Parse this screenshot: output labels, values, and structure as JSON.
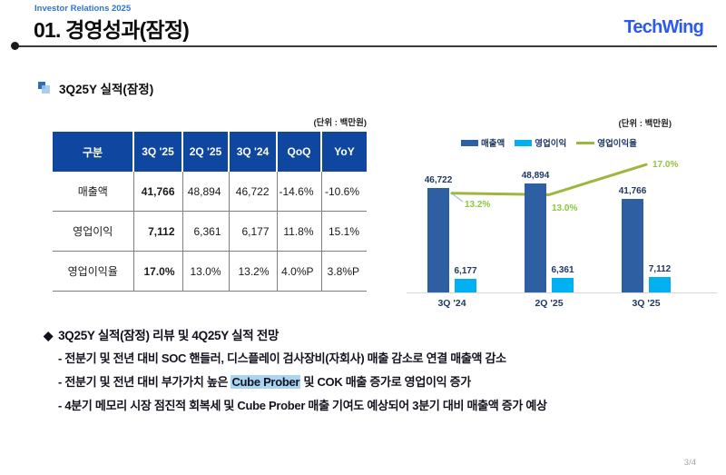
{
  "header": {
    "eyebrow": "Investor Relations 2025",
    "title": "01. 경영성과(잠정)",
    "logo": "TechWing"
  },
  "section": {
    "title": "3Q25Y 실적(잠정)"
  },
  "table": {
    "unit_label": "(단위 : 백만원)",
    "columns": [
      "구분",
      "3Q '25",
      "2Q '25",
      "3Q '24",
      "QoQ",
      "YoY"
    ],
    "rows": [
      {
        "label": "매출액",
        "values": [
          "41,766",
          "48,894",
          "46,722",
          "-14.6%",
          "-10.6%"
        ]
      },
      {
        "label": "영업이익",
        "values": [
          "7,112",
          "6,361",
          "6,177",
          "11.8%",
          "15.1%"
        ]
      },
      {
        "label": "영업이익율",
        "values": [
          "17.0%",
          "13.0%",
          "13.2%",
          "4.0%P",
          "3.8%P"
        ]
      }
    ]
  },
  "chart": {
    "unit_label": "(단위 : 백만원)"
  },
  "chart_data": {
    "type": "bar+line",
    "categories": [
      "3Q '24",
      "2Q '25",
      "3Q '25"
    ],
    "series": [
      {
        "name": "매출액",
        "type": "bar",
        "color": "#2E5FA3",
        "values": [
          46722,
          48894,
          41766
        ],
        "labels": [
          "46,722",
          "48,894",
          "41,766"
        ]
      },
      {
        "name": "영업이익",
        "type": "bar",
        "color": "#00B0F0",
        "values": [
          6177,
          6361,
          7112
        ],
        "labels": [
          "6,177",
          "6,361",
          "7,112"
        ]
      },
      {
        "name": "영업이익율",
        "type": "line",
        "color": "#9DB63C",
        "label_color": "#8DC63F",
        "values": [
          13.2,
          13.0,
          17.0
        ],
        "labels": [
          "13.2%",
          "13.0%",
          "17.0%"
        ]
      }
    ],
    "legend_position": "top",
    "bar_axis_max": 48894,
    "grid": false
  },
  "review": {
    "diamond": "◆",
    "heading": "3Q25Y 실적(잠정) 리뷰 및 4Q25Y 실적 전망",
    "bullet1": "- 전분기 및 전년 대비 SOC 핸들러, 디스플레이 검사장비(자회사) 매출 감소로 연결 매출액 감소",
    "bullet2_pre": "- 전분기 및 전년 대비 부가가치 높은 ",
    "bullet2_highlight": "Cube Prober",
    "bullet2_post": " 및 COK 매출 증가로 영업이익 증가",
    "bullet3": "- 4분기 메모리 시장 점진적 회복세 및 Cube Prober 매출 기여도 예상되어 3분기 대비 매출액 증가 예상"
  },
  "page": {
    "page_number": "3/4"
  },
  "colors": {
    "table_header": "#0F47A0",
    "revenue_bar": "#2E5FA3",
    "profit_bar": "#00B0F0",
    "margin_line": "#9DB63C",
    "margin_label": "#8DC63F",
    "navy_text": "#1F3864",
    "logo_blue": "#2B5AF0",
    "eyebrow_blue": "#2E74D9",
    "highlight": "#A9D4F2"
  }
}
